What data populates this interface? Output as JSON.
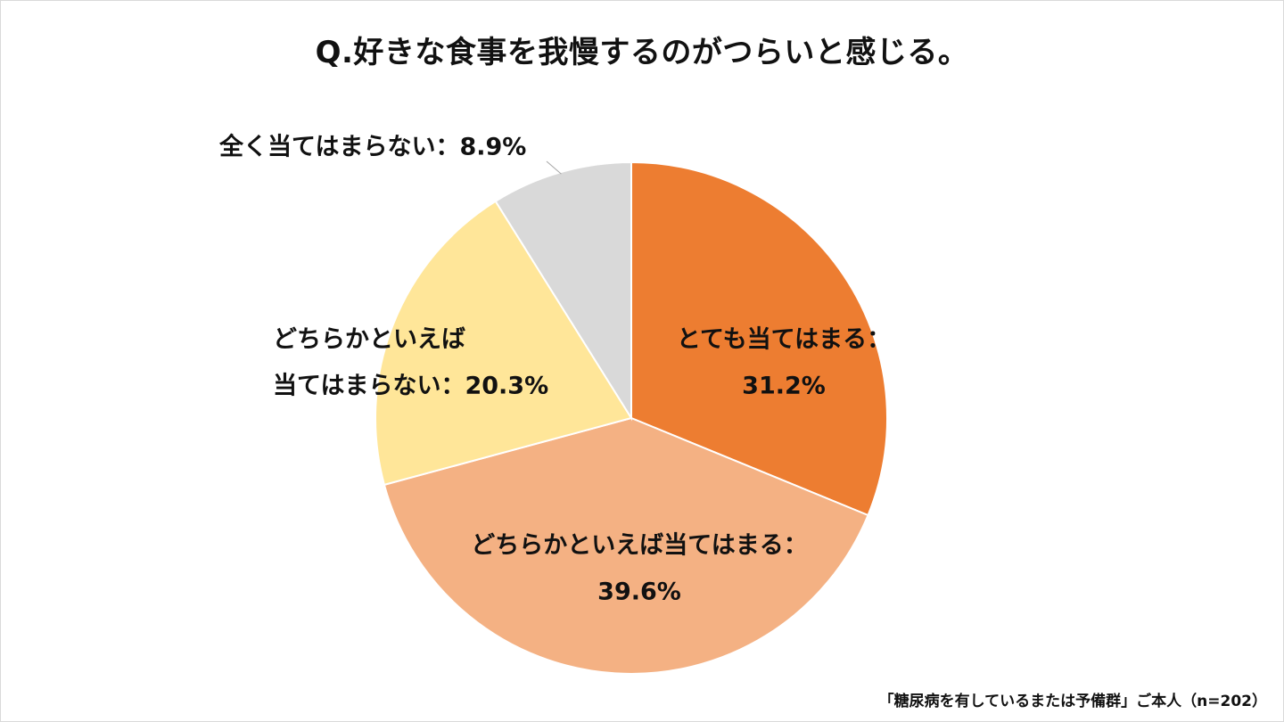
{
  "title": "Q.好きな食事を我慢するのがつらいと感じる。",
  "footnote": "「糖尿病を有しているまたは予備群」ご本人（n=202）",
  "chart_data": {
    "type": "pie",
    "title": "Q.好きな食事を我慢するのがつらいと感じる。",
    "start": "12 o'clock, clockwise",
    "slices": [
      {
        "label": "とても当てはまる",
        "value": 31.2,
        "display": "31.2%",
        "color": "#ED7D31"
      },
      {
        "label": "どちらかといえば当てはまる",
        "value": 39.6,
        "display": "39.6%",
        "color": "#F4B183"
      },
      {
        "label": "どちらかといえば当てはまらない",
        "value": 20.3,
        "display": "20.3%",
        "color": "#FFE699"
      },
      {
        "label": "全く当てはまらない",
        "value": 8.9,
        "display": "8.9%",
        "color": "#D9D9D9"
      }
    ],
    "data_labels": [
      {
        "lines": [
          "とても当てはまる：",
          "31.2%"
        ]
      },
      {
        "lines": [
          "どちらかといえば当てはまる：",
          "39.6%"
        ]
      },
      {
        "lines": [
          "どちらかといえば",
          "当てはまらない：20.3%"
        ]
      },
      {
        "lines": [
          "全く当てはまらない：8.9%"
        ]
      }
    ]
  }
}
